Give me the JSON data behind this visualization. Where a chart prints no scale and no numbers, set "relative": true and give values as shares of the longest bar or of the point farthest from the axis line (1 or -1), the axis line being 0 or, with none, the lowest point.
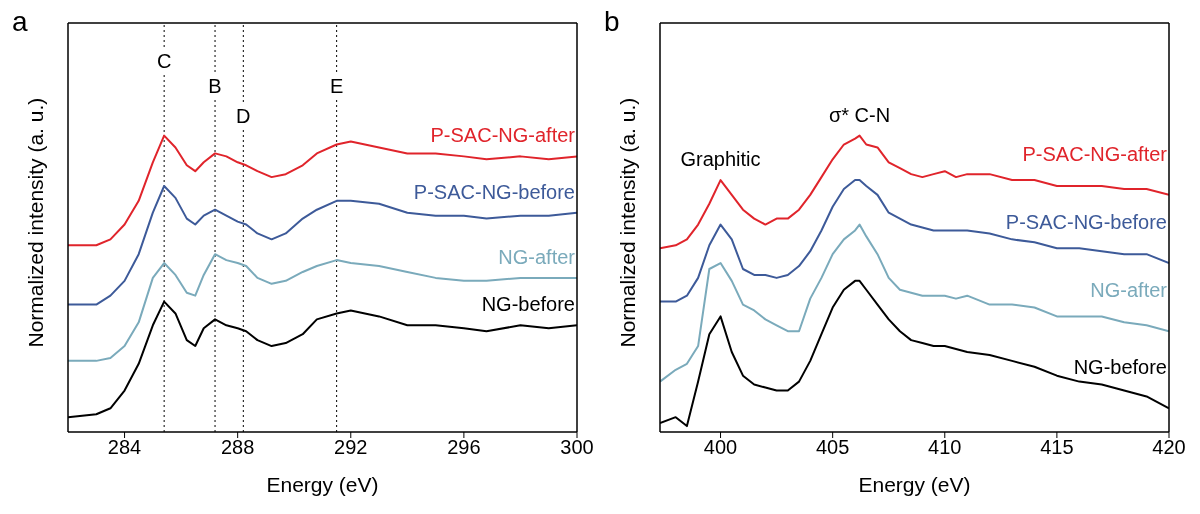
{
  "chart_data": [
    {
      "type": "line",
      "title": "a",
      "xlabel": "Energy (eV)",
      "ylabel": "Normalized intensity (a. u.)",
      "relative": true,
      "marker": "none",
      "xlim": [
        282,
        300
      ],
      "xticks": [
        284,
        288,
        292,
        296,
        300
      ],
      "x": [
        282,
        283,
        283.5,
        284,
        284.5,
        285,
        285.4,
        285.8,
        286.2,
        286.5,
        286.8,
        287.2,
        287.6,
        288,
        288.3,
        288.7,
        289.2,
        289.7,
        290.3,
        290.8,
        291.5,
        292,
        293,
        294,
        295,
        296,
        296.8,
        298,
        299,
        300
      ],
      "series": [
        {
          "name": "P-SAC-NG-after",
          "color": "#e0242b",
          "values": [
            0.63,
            0.63,
            0.65,
            0.7,
            0.78,
            0.91,
            1,
            0.96,
            0.9,
            0.88,
            0.91,
            0.94,
            0.93,
            0.91,
            0.9,
            0.88,
            0.86,
            0.87,
            0.9,
            0.94,
            0.97,
            0.98,
            0.96,
            0.94,
            0.94,
            0.93,
            0.92,
            0.93,
            0.92,
            0.93
          ]
        },
        {
          "name": "P-SAC-NG-before",
          "color": "#3d5a99",
          "values": [
            0.43,
            0.43,
            0.46,
            0.51,
            0.6,
            0.74,
            0.83,
            0.79,
            0.72,
            0.7,
            0.73,
            0.75,
            0.73,
            0.71,
            0.7,
            0.67,
            0.65,
            0.67,
            0.72,
            0.75,
            0.78,
            0.78,
            0.77,
            0.74,
            0.73,
            0.73,
            0.72,
            0.73,
            0.73,
            0.74
          ]
        },
        {
          "name": "NG-after",
          "color": "#7aaabb",
          "values": [
            0.24,
            0.24,
            0.25,
            0.29,
            0.37,
            0.52,
            0.57,
            0.53,
            0.47,
            0.46,
            0.53,
            0.6,
            0.58,
            0.57,
            0.56,
            0.52,
            0.5,
            0.51,
            0.54,
            0.56,
            0.58,
            0.57,
            0.56,
            0.54,
            0.52,
            0.51,
            0.51,
            0.52,
            0.52,
            0.52
          ]
        },
        {
          "name": "NG-before",
          "color": "#000000",
          "values": [
            0.05,
            0.06,
            0.08,
            0.14,
            0.23,
            0.36,
            0.44,
            0.4,
            0.31,
            0.29,
            0.35,
            0.38,
            0.36,
            0.35,
            0.34,
            0.31,
            0.29,
            0.3,
            0.33,
            0.38,
            0.4,
            0.41,
            0.39,
            0.36,
            0.36,
            0.35,
            0.34,
            0.36,
            0.35,
            0.36
          ]
        }
      ],
      "ref_lines": [
        {
          "axis": "x",
          "value": 285.4,
          "label": "C",
          "color": "#000000",
          "line_style": "dotted"
        },
        {
          "axis": "x",
          "value": 287.2,
          "label": "B",
          "color": "#000000",
          "line_style": "dotted"
        },
        {
          "axis": "x",
          "value": 288.2,
          "label": "D",
          "color": "#000000",
          "line_style": "dotted"
        },
        {
          "axis": "x",
          "value": 291.5,
          "label": "E",
          "color": "#000000",
          "line_style": "dotted"
        }
      ]
    },
    {
      "type": "line",
      "title": "b",
      "xlabel": "Energy (eV)",
      "ylabel": "Normalized intensity (a. u.)",
      "relative": true,
      "marker": "none",
      "xlim": [
        397.3,
        420
      ],
      "xticks": [
        400,
        405,
        410,
        415,
        420
      ],
      "x": [
        397.3,
        398,
        398.5,
        399,
        399.5,
        400,
        400.5,
        401,
        401.5,
        402,
        402.5,
        403,
        403.5,
        404,
        404.5,
        405,
        405.5,
        406,
        406.2,
        406.5,
        407,
        407.5,
        408,
        408.5,
        409,
        409.5,
        410,
        410.5,
        411,
        412,
        413,
        414,
        415,
        416,
        417,
        418,
        419,
        420
      ],
      "series": [
        {
          "name": "P-SAC-NG-after",
          "color": "#e0242b",
          "values": [
            0.62,
            0.63,
            0.65,
            0.7,
            0.77,
            0.85,
            0.8,
            0.75,
            0.72,
            0.7,
            0.72,
            0.72,
            0.75,
            0.8,
            0.86,
            0.92,
            0.97,
            0.99,
            1,
            0.97,
            0.96,
            0.91,
            0.89,
            0.87,
            0.86,
            0.87,
            0.88,
            0.86,
            0.87,
            0.87,
            0.85,
            0.85,
            0.83,
            0.83,
            0.83,
            0.82,
            0.82,
            0.8
          ]
        },
        {
          "name": "P-SAC-NG-before",
          "color": "#3d5a99",
          "values": [
            0.44,
            0.44,
            0.46,
            0.52,
            0.63,
            0.7,
            0.65,
            0.55,
            0.53,
            0.53,
            0.52,
            0.53,
            0.56,
            0.61,
            0.68,
            0.76,
            0.82,
            0.85,
            0.85,
            0.83,
            0.8,
            0.74,
            0.72,
            0.7,
            0.69,
            0.68,
            0.68,
            0.68,
            0.68,
            0.67,
            0.65,
            0.64,
            0.62,
            0.62,
            0.61,
            0.6,
            0.6,
            0.57
          ]
        },
        {
          "name": "NG-after",
          "color": "#7aaabb",
          "values": [
            0.17,
            0.21,
            0.23,
            0.29,
            0.55,
            0.57,
            0.51,
            0.43,
            0.41,
            0.38,
            0.36,
            0.34,
            0.34,
            0.45,
            0.52,
            0.6,
            0.65,
            0.68,
            0.7,
            0.66,
            0.6,
            0.52,
            0.48,
            0.47,
            0.46,
            0.46,
            0.46,
            0.45,
            0.46,
            0.43,
            0.43,
            0.42,
            0.39,
            0.39,
            0.39,
            0.37,
            0.36,
            0.34
          ]
        },
        {
          "name": "NG-before",
          "color": "#000000",
          "values": [
            0.03,
            0.05,
            0.02,
            0.17,
            0.33,
            0.39,
            0.27,
            0.19,
            0.16,
            0.15,
            0.14,
            0.14,
            0.17,
            0.24,
            0.33,
            0.42,
            0.48,
            0.51,
            0.51,
            0.48,
            0.43,
            0.38,
            0.34,
            0.31,
            0.3,
            0.29,
            0.29,
            0.28,
            0.27,
            0.26,
            0.24,
            0.22,
            0.19,
            0.17,
            0.16,
            0.14,
            0.12,
            0.08
          ]
        }
      ],
      "annotations": [
        {
          "text": "Graphitic",
          "x": 400,
          "y": 0.85
        },
        {
          "text": "σ* C-N",
          "x": 406.2,
          "y": 1
        }
      ]
    }
  ]
}
